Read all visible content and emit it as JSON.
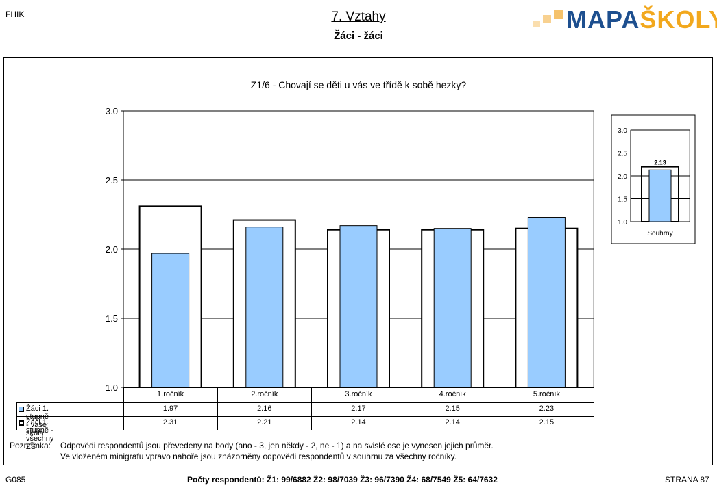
{
  "header": {
    "school_code": "FHIK",
    "title": "7. Vztahy",
    "subtitle": "Žáci - žáci",
    "logo_text_main": "MAPA",
    "logo_text_accent": "ŠKOLY"
  },
  "chart_data": [
    {
      "type": "bar",
      "title": "Z1/6 - Chovají se děti u vás ve třídě k sobě hezky?",
      "categories": [
        "1.ročník",
        "2.ročník",
        "3.ročník",
        "4.ročník",
        "5.ročník"
      ],
      "ylim": [
        1.0,
        3.0
      ],
      "yticks": [
        "1.0",
        "1.5",
        "2.0",
        "2.5",
        "3.0"
      ],
      "grid": true,
      "legend_placement": "table-below",
      "series": [
        {
          "name": "Žáci 1. stupně - vaše škola",
          "values": [
            1.97,
            2.16,
            2.17,
            2.15,
            2.23
          ],
          "labels": [
            "1.97",
            "2.16",
            "2.17",
            "2.15",
            "2.23"
          ],
          "color": "#99ccff",
          "style": "filled"
        },
        {
          "name": "Žáci 1. stupně - všechny ZŠ",
          "values": [
            2.31,
            2.21,
            2.14,
            2.14,
            2.15
          ],
          "labels": [
            "2.31",
            "2.21",
            "2.14",
            "2.14",
            "2.15"
          ],
          "color": "#000000",
          "style": "outline"
        }
      ]
    },
    {
      "type": "bar",
      "categories": [
        "Souhrny"
      ],
      "ylim": [
        1.0,
        3.0
      ],
      "yticks": [
        "1.0",
        "1.5",
        "2.0",
        "2.5",
        "3.0"
      ],
      "grid": true,
      "series": [
        {
          "values": [
            2.13
          ],
          "labels": [
            "2.13"
          ],
          "color": "#99ccff",
          "style": "filled"
        },
        {
          "values": [
            2.2
          ],
          "color": "#000000",
          "style": "outline"
        }
      ]
    }
  ],
  "note": {
    "label": "Poznámka:",
    "lines": [
      "Odpovědi respondentů jsou převedeny na body (ano - 3, jen někdy - 2, ne - 1) a na svislé ose je vynesen jejich průměr.",
      "Ve vloženém minigrafu vpravo nahoře jsou znázorněny odpovědi respondentů v souhrnu za všechny ročníky."
    ]
  },
  "footer": {
    "code": "G085",
    "respondents": "Počty respondentů:   Ž1: 99/6882    Ž2: 98/7039    Ž3: 96/7390    Ž4: 68/7549    Ž5: 64/7632",
    "page": "STRANA 87"
  }
}
